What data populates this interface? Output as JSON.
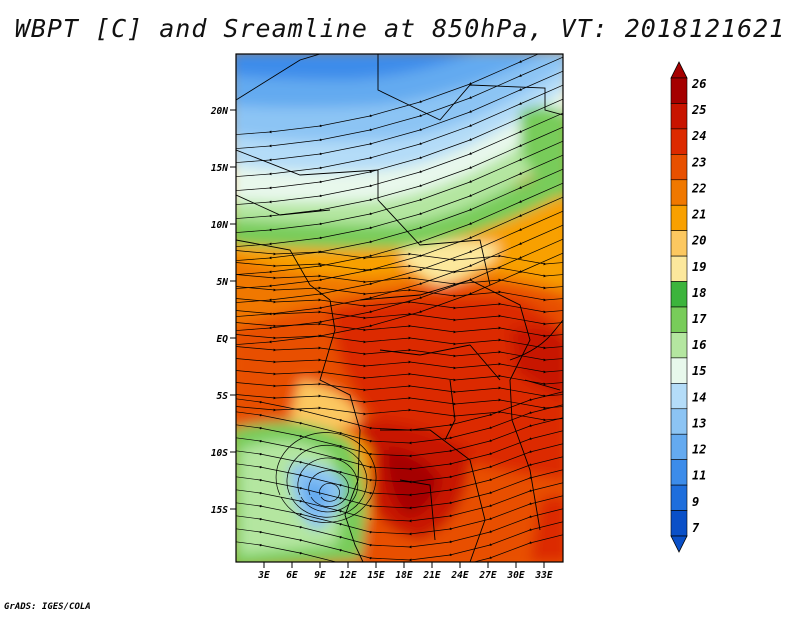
{
  "title": "WBPT [C] and Sreamline at 850hPa, VT: 2018121621",
  "footer": "GrADS: IGES/COLA",
  "map": {
    "variable": "WBPT",
    "units": "C",
    "level_hPa": 850,
    "valid_time": "2018121621",
    "lat_ticks": [
      "20N",
      "15N",
      "10N",
      "5N",
      "EQ",
      "5S",
      "10S",
      "15S"
    ],
    "lon_ticks": [
      "3E",
      "6E",
      "9E",
      "12E",
      "15E",
      "18E",
      "21E",
      "24E",
      "27E",
      "30E",
      "33E"
    ]
  },
  "colorbar": {
    "labels": [
      "26",
      "25",
      "24",
      "23",
      "22",
      "21",
      "20",
      "19",
      "18",
      "17",
      "16",
      "15",
      "14",
      "13",
      "12",
      "11",
      "9",
      "7"
    ],
    "colors": [
      "#a50000",
      "#c81400",
      "#dc2a00",
      "#e85000",
      "#f07800",
      "#f8a000",
      "#fcc860",
      "#fce89c",
      "#3cb43c",
      "#78cc5a",
      "#b4e6a0",
      "#e8f8ec",
      "#b4dcf8",
      "#8cc4f4",
      "#64aaf0",
      "#3c8cea",
      "#1e6edc",
      "#0a50c8"
    ],
    "extend_top_color": "#a50000",
    "extend_bottom_color": "#0a50c8"
  }
}
